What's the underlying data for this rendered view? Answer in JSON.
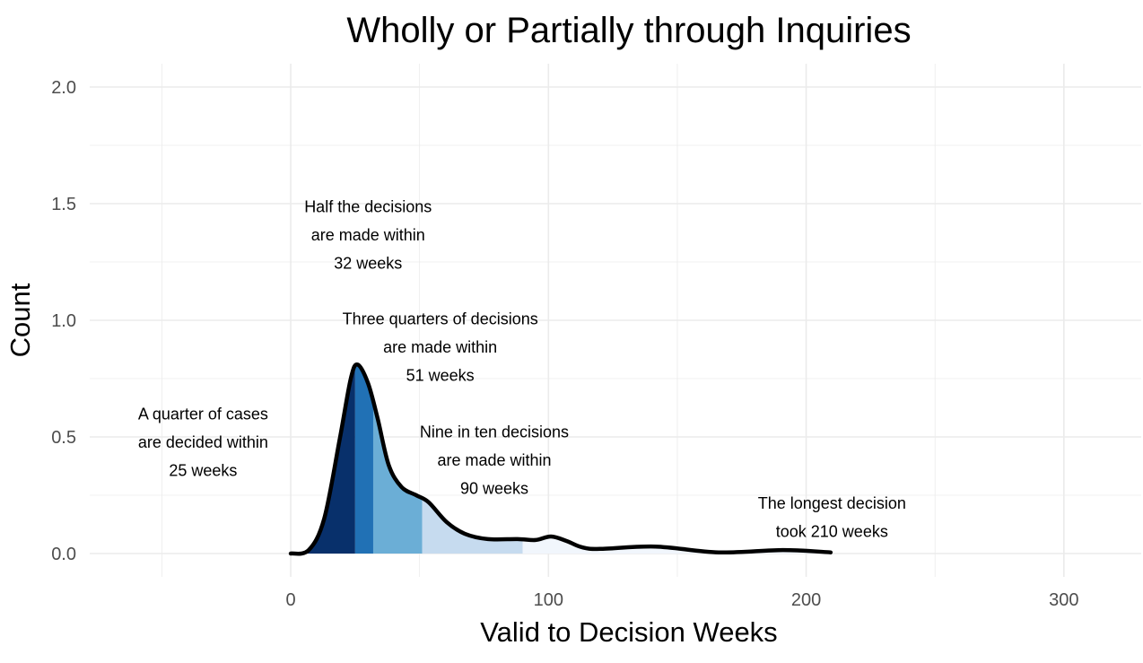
{
  "chart_data": {
    "type": "area",
    "title": "Wholly or Partially through Inquiries",
    "xlabel": "Valid to Decision Weeks",
    "ylabel": "Count",
    "xlim": [
      -78,
      330
    ],
    "ylim": [
      -0.1,
      2.1
    ],
    "x_ticks": [
      0,
      100,
      200,
      300
    ],
    "y_ticks": [
      "0.0",
      "0.5",
      "1.0",
      "1.5",
      "2.0"
    ],
    "grid": true,
    "curve": {
      "x": [
        0,
        7,
        13,
        19,
        23.3,
        26,
        30,
        33.7,
        38,
        43,
        48.7,
        53.5,
        60.5,
        67.5,
        76.5,
        88,
        95,
        101,
        107,
        113,
        120,
        141.5,
        166,
        191,
        209.5
      ],
      "y": [
        0,
        0.015,
        0.15,
        0.49,
        0.75,
        0.81,
        0.73,
        0.58,
        0.38,
        0.285,
        0.25,
        0.22,
        0.135,
        0.085,
        0.062,
        0.062,
        0.058,
        0.073,
        0.054,
        0.027,
        0.02,
        0.03,
        0.005,
        0.015,
        0.005
      ]
    },
    "quantile_bands": [
      {
        "from": 0,
        "to": 25,
        "color": "#08306b"
      },
      {
        "from": 25,
        "to": 32,
        "color": "#2171b5"
      },
      {
        "from": 32,
        "to": 51,
        "color": "#6baed6"
      },
      {
        "from": 51,
        "to": 90,
        "color": "#c6dbef"
      },
      {
        "from": 90,
        "to": 210,
        "color": "#f1f6fc"
      }
    ],
    "annotations": [
      {
        "x": -34,
        "y": 0.477,
        "lines": [
          "A quarter of cases",
          "are decided within",
          "25 weeks"
        ]
      },
      {
        "x": 30,
        "y": 1.365,
        "lines": [
          "Half the decisions",
          "are made within",
          "32 weeks"
        ]
      },
      {
        "x": 58,
        "y": 0.885,
        "lines": [
          "Three quarters of decisions",
          "are made within",
          "51 weeks"
        ]
      },
      {
        "x": 79,
        "y": 0.4,
        "lines": [
          "Nine in ten decisions",
          "are made within",
          "90 weeks"
        ]
      },
      {
        "x": 210,
        "y": 0.154,
        "lines": [
          "The longest decision",
          "took 210 weeks"
        ]
      }
    ]
  }
}
